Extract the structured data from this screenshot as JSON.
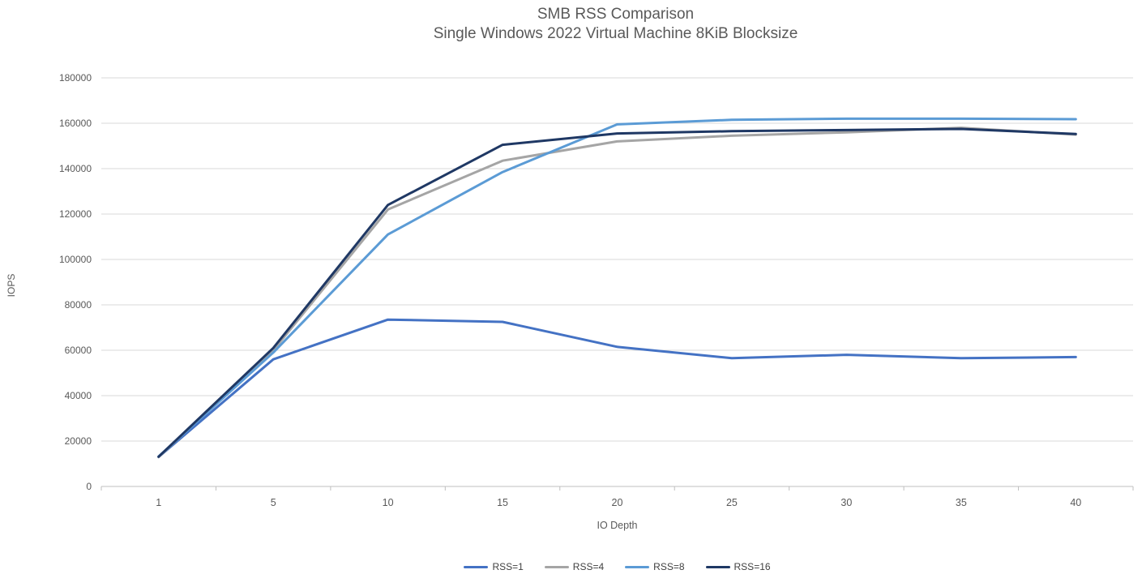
{
  "colors": {
    "background": "#ffffff",
    "title_text": "#595959",
    "axis_text": "#595959",
    "legend_text": "#404040",
    "gridline": "#d9d9d9",
    "axis_line": "#bfbfbf"
  },
  "chart_data": {
    "type": "line",
    "title": "SMB RSS Comparison",
    "subtitle": "Single Windows 2022 Virtual Machine 8KiB Blocksize",
    "xlabel": "IO Depth",
    "ylabel": "IOPS",
    "categories": [
      "1",
      "5",
      "10",
      "15",
      "20",
      "25",
      "30",
      "35",
      "40"
    ],
    "ylim": [
      0,
      180000
    ],
    "ytick_step": 20000,
    "grid": true,
    "legend_position": "bottom",
    "series": [
      {
        "name": "RSS=1",
        "color": "#4472C4",
        "values": [
          13000,
          56000,
          73500,
          72500,
          61500,
          56500,
          58000,
          56500,
          57000
        ]
      },
      {
        "name": "RSS=4",
        "color": "#A5A5A5",
        "values": [
          13000,
          60000,
          122000,
          143500,
          152000,
          154500,
          156000,
          158000,
          155000
        ]
      },
      {
        "name": "RSS=8",
        "color": "#5B9BD5",
        "values": [
          13200,
          59000,
          111000,
          138500,
          159500,
          161500,
          162000,
          162000,
          161800
        ]
      },
      {
        "name": "RSS=16",
        "color": "#1F3864",
        "values": [
          13100,
          61000,
          124000,
          150500,
          155500,
          156500,
          157000,
          157500,
          155300
        ]
      }
    ]
  }
}
